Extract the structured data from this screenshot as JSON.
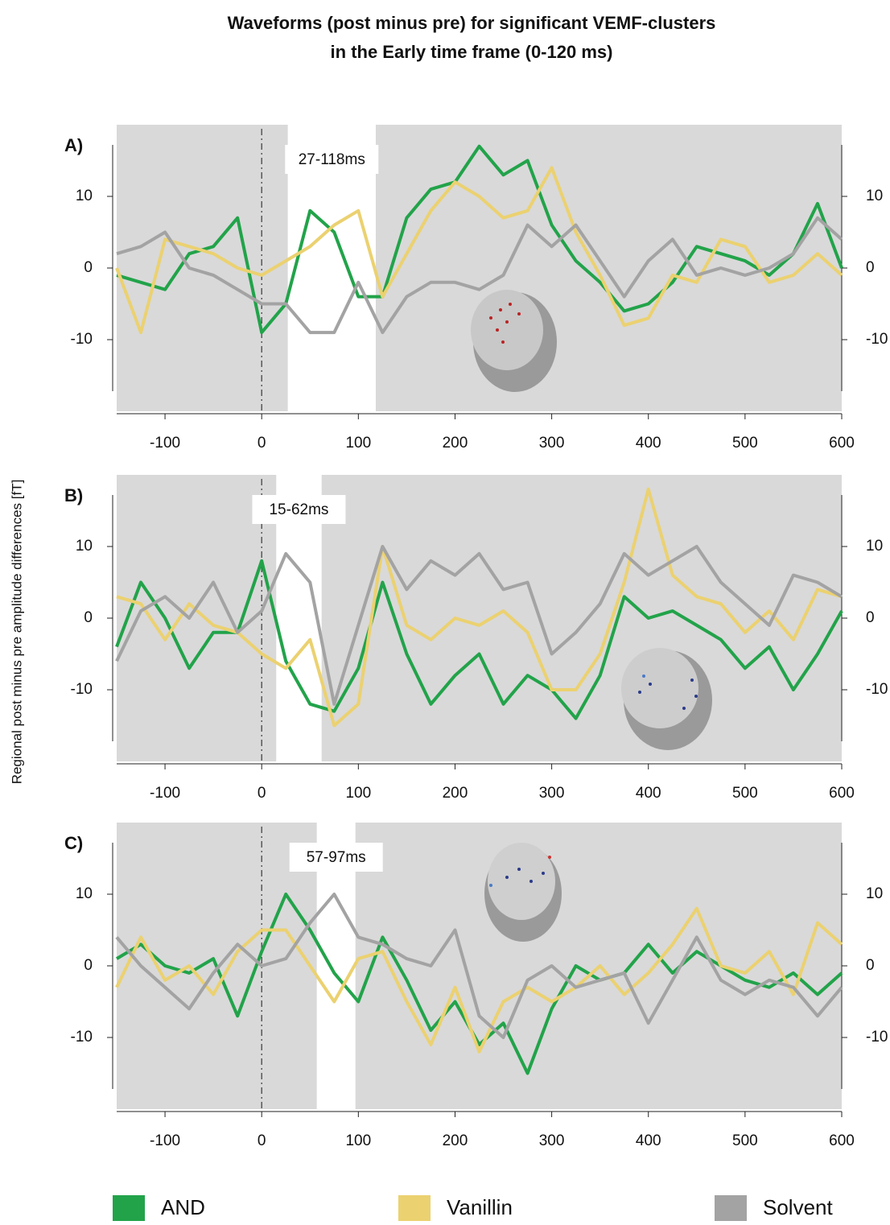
{
  "title_lines": [
    "Waveforms (post minus pre) for significant VEMF-clusters",
    "in the Early time frame (0-120 ms)"
  ],
  "y_label": "Regional  post minus pre  amplitude  differences  [fT]",
  "chart_data": [
    {
      "type": "line",
      "panel_label": "A)",
      "window": [
        27,
        118
      ],
      "window_label": "27-118ms",
      "event_x": 0,
      "x": [
        -150,
        -125,
        -100,
        -75,
        -50,
        -25,
        0,
        25,
        50,
        75,
        100,
        125,
        150,
        175,
        200,
        225,
        250,
        275,
        300,
        325,
        350,
        375,
        400,
        425,
        450,
        475,
        500,
        525,
        550,
        575,
        600
      ],
      "xlim": [
        -150,
        600
      ],
      "xticks": [
        -100,
        0,
        100,
        200,
        300,
        400,
        500,
        600
      ],
      "ylim": [
        -20,
        20
      ],
      "yticks": [
        -10,
        0,
        10
      ],
      "series": [
        {
          "name": "AND",
          "color": "#22a34a",
          "values": [
            -1,
            -2,
            -3,
            2,
            3,
            7,
            -9,
            -5,
            8,
            5,
            -4,
            -4,
            7,
            11,
            12,
            17,
            13,
            15,
            6,
            1,
            -2,
            -6,
            -5,
            -2,
            3,
            2,
            1,
            -1,
            2,
            9,
            0
          ]
        },
        {
          "name": "Vanillin",
          "color": "#ebd170",
          "values": [
            0,
            -9,
            4,
            3,
            2,
            0,
            -1,
            1,
            3,
            6,
            8,
            -4,
            2,
            8,
            12,
            10,
            7,
            8,
            14,
            5,
            -1,
            -8,
            -7,
            -1,
            -2,
            4,
            3,
            -2,
            -1,
            2,
            -1
          ]
        },
        {
          "name": "Solvent",
          "color": "#a3a3a3",
          "values": [
            2,
            3,
            5,
            0,
            -1,
            -3,
            -5,
            -5,
            -9,
            -9,
            -2,
            -9,
            -4,
            -2,
            -2,
            -3,
            -1,
            6,
            3,
            6,
            1,
            -4,
            1,
            4,
            -1,
            0,
            -1,
            0,
            2,
            7,
            4
          ]
        }
      ]
    },
    {
      "type": "line",
      "panel_label": "B)",
      "window": [
        15,
        62
      ],
      "window_label": "15-62ms",
      "event_x": 0,
      "x": [
        -150,
        -125,
        -100,
        -75,
        -50,
        -25,
        0,
        25,
        50,
        75,
        100,
        125,
        150,
        175,
        200,
        225,
        250,
        275,
        300,
        325,
        350,
        375,
        400,
        425,
        450,
        475,
        500,
        525,
        550,
        575,
        600
      ],
      "xlim": [
        -150,
        600
      ],
      "xticks": [
        -100,
        0,
        100,
        200,
        300,
        400,
        500,
        600
      ],
      "ylim": [
        -20,
        20
      ],
      "yticks": [
        -10,
        0,
        10
      ],
      "series": [
        {
          "name": "AND",
          "color": "#22a34a",
          "values": [
            -4,
            5,
            0,
            -7,
            -2,
            -2,
            8,
            -6,
            -12,
            -13,
            -7,
            5,
            -5,
            -12,
            -8,
            -5,
            -12,
            -8,
            -10,
            -14,
            -8,
            3,
            0,
            1,
            -1,
            -3,
            -7,
            -4,
            -10,
            -5,
            1
          ]
        },
        {
          "name": "Vanillin",
          "color": "#ebd170",
          "values": [
            3,
            2,
            -3,
            2,
            -1,
            -2,
            -5,
            -7,
            -3,
            -15,
            -12,
            10,
            -1,
            -3,
            0,
            -1,
            1,
            -2,
            -10,
            -10,
            -5,
            5,
            18,
            6,
            3,
            2,
            -2,
            1,
            -3,
            4,
            3
          ]
        },
        {
          "name": "Solvent",
          "color": "#a3a3a3",
          "values": [
            -6,
            1,
            3,
            0,
            5,
            -2,
            1,
            9,
            5,
            -12,
            -1,
            10,
            4,
            8,
            6,
            9,
            4,
            5,
            -5,
            -2,
            2,
            9,
            6,
            8,
            10,
            5,
            2,
            -1,
            6,
            5,
            3
          ]
        }
      ]
    },
    {
      "type": "line",
      "panel_label": "C)",
      "window": [
        57,
        97
      ],
      "window_label": "57-97ms",
      "event_x": 0,
      "x": [
        -150,
        -125,
        -100,
        -75,
        -50,
        -25,
        0,
        25,
        50,
        75,
        100,
        125,
        150,
        175,
        200,
        225,
        250,
        275,
        300,
        325,
        350,
        375,
        400,
        425,
        450,
        475,
        500,
        525,
        550,
        575,
        600
      ],
      "xlim": [
        -150,
        600
      ],
      "xticks": [
        -100,
        0,
        100,
        200,
        300,
        400,
        500,
        600
      ],
      "ylim": [
        -20,
        20
      ],
      "yticks": [
        -10,
        0,
        10
      ],
      "series": [
        {
          "name": "AND",
          "color": "#22a34a",
          "values": [
            1,
            3,
            0,
            -1,
            1,
            -7,
            2,
            10,
            5,
            -1,
            -5,
            4,
            -2,
            -9,
            -5,
            -11,
            -8,
            -15,
            -6,
            0,
            -2,
            -1,
            3,
            -1,
            2,
            0,
            -2,
            -3,
            -1,
            -4,
            -1
          ]
        },
        {
          "name": "Vanillin",
          "color": "#ebd170",
          "values": [
            -3,
            4,
            -2,
            0,
            -4,
            2,
            5,
            5,
            0,
            -5,
            1,
            2,
            -5,
            -11,
            -3,
            -12,
            -5,
            -3,
            -5,
            -3,
            0,
            -4,
            -1,
            3,
            8,
            0,
            -1,
            2,
            -4,
            6,
            3
          ]
        },
        {
          "name": "Solvent",
          "color": "#a3a3a3",
          "values": [
            4,
            0,
            -3,
            -6,
            -1,
            3,
            0,
            1,
            6,
            10,
            4,
            3,
            1,
            0,
            5,
            -7,
            -10,
            -2,
            0,
            -3,
            -2,
            -1,
            -8,
            -2,
            4,
            -2,
            -4,
            -2,
            -3,
            -7,
            -3
          ]
        }
      ]
    }
  ]
}
